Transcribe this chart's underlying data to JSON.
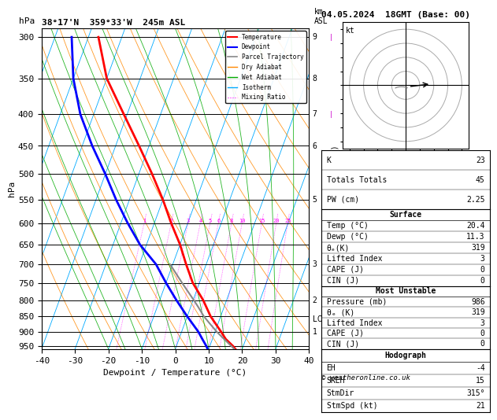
{
  "title_left": "38°17'N  359°33'W  245m ASL",
  "title_right": "04.05.2024  18GMT (Base: 00)",
  "xlabel": "Dewpoint / Temperature (°C)",
  "ylabel_left": "hPa",
  "x_min": -40,
  "x_max": 40,
  "pressure_levels": [
    300,
    350,
    400,
    450,
    500,
    550,
    600,
    650,
    700,
    750,
    800,
    850,
    900,
    950
  ],
  "pressure_ticks": [
    300,
    350,
    400,
    450,
    500,
    550,
    600,
    650,
    700,
    750,
    800,
    850,
    900,
    950
  ],
  "temp_color": "#ff0000",
  "dewp_color": "#0000ff",
  "parcel_color": "#888888",
  "dry_adiabat_color": "#ff8800",
  "wet_adiabat_color": "#00aa00",
  "isotherm_color": "#00aaff",
  "mixing_ratio_color": "#ff00ff",
  "background_color": "#ffffff",
  "plot_bg_color": "#ffffff",
  "table_data": {
    "K": 23,
    "Totals Totals": 45,
    "PW (cm)": 2.25,
    "Surface_Temp": 20.4,
    "Surface_Dewp": 11.3,
    "Surface_ThetaE": 319,
    "Surface_LiftedIndex": 3,
    "Surface_CAPE": 0,
    "Surface_CIN": 0,
    "MU_Pressure": 986,
    "MU_ThetaE": 319,
    "MU_LiftedIndex": 3,
    "MU_CAPE": 0,
    "MU_CIN": 0,
    "Hodo_EH": -4,
    "Hodo_SREH": 15,
    "Hodo_StmDir": "315°",
    "Hodo_StmSpd": 21
  },
  "sounding_pressure": [
    986,
    950,
    925,
    900,
    850,
    800,
    750,
    700,
    650,
    600,
    550,
    500,
    450,
    400,
    350,
    300
  ],
  "sounding_temp": [
    20.4,
    17.0,
    14.0,
    11.8,
    7.0,
    3.0,
    -2.0,
    -6.0,
    -10.0,
    -15.0,
    -20.0,
    -26.0,
    -33.0,
    -41.0,
    -50.0,
    -57.0
  ],
  "sounding_dewp": [
    11.3,
    9.0,
    7.0,
    5.0,
    0.0,
    -5.0,
    -10.0,
    -15.0,
    -22.0,
    -28.0,
    -34.0,
    -40.0,
    -47.0,
    -54.0,
    -60.0,
    -65.0
  ],
  "parcel_pressure": [
    986,
    950,
    925,
    900,
    870,
    850,
    820,
    800,
    750,
    700
  ],
  "parcel_temp": [
    20.4,
    16.5,
    13.5,
    10.5,
    7.2,
    5.0,
    2.2,
    0.2,
    -5.2,
    -10.8
  ],
  "km_labels": {
    "300": "9",
    "350": "8",
    "400": "7",
    "450": "6",
    "550": "5",
    "700": "3",
    "800": "2",
    "900": "1"
  },
  "lcl_pressure": 858,
  "footnote": "© weatheronline.co.uk",
  "skew_factor": 35.0,
  "p_min": 290,
  "p_max": 960
}
